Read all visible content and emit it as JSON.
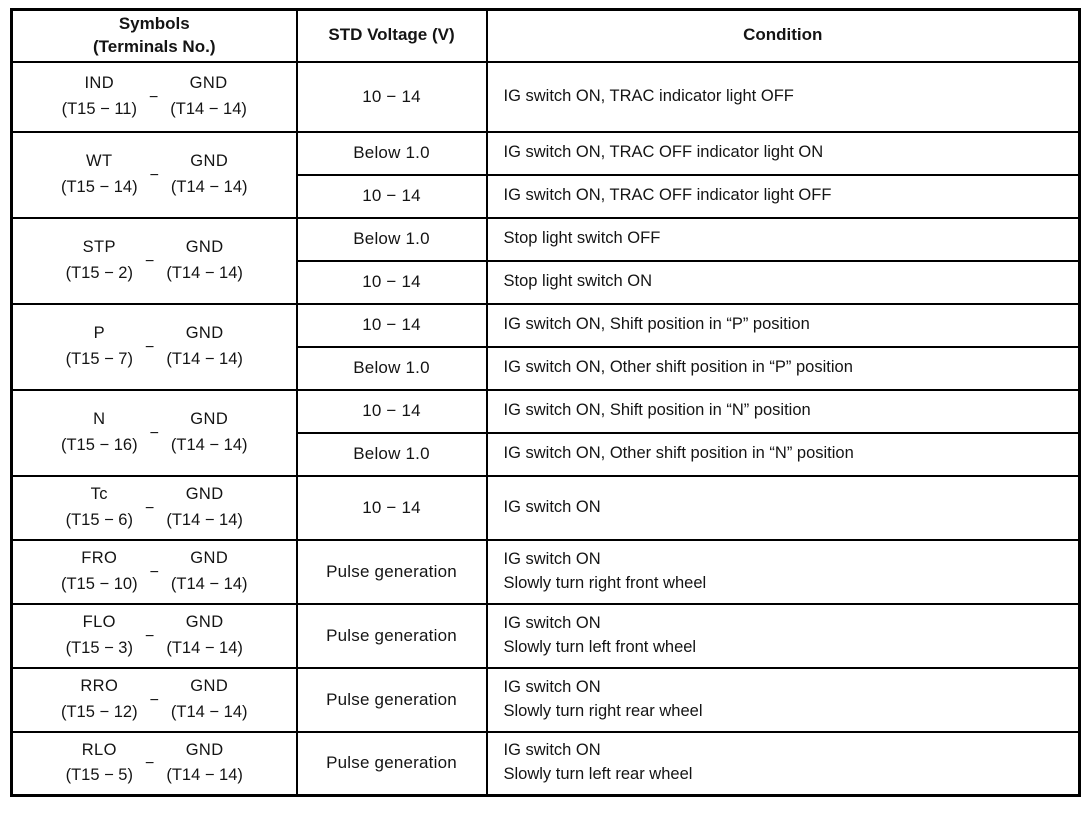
{
  "table": {
    "dash": "−",
    "header": {
      "symbols_line1": "Symbols",
      "symbols_line2": "(Terminals No.)",
      "voltage": "STD Voltage (V)",
      "condition": "Condition"
    },
    "groups": [
      {
        "symbol": "IND",
        "symbol_terminal": "(T15 − 11)",
        "gnd": "GND",
        "gnd_terminal": "(T14 − 14)",
        "rows": [
          {
            "voltage": "10 − 14",
            "condition1": "IG switch ON, TRAC indicator light OFF",
            "condition2": ""
          }
        ]
      },
      {
        "symbol": "WT",
        "symbol_terminal": "(T15 − 14)",
        "gnd": "GND",
        "gnd_terminal": "(T14 − 14)",
        "rows": [
          {
            "voltage": "Below 1.0",
            "condition1": "IG switch ON, TRAC OFF indicator light ON",
            "condition2": ""
          },
          {
            "voltage": "10 − 14",
            "condition1": "IG switch ON, TRAC OFF indicator light OFF",
            "condition2": ""
          }
        ]
      },
      {
        "symbol": "STP",
        "symbol_terminal": "(T15 − 2)",
        "gnd": "GND",
        "gnd_terminal": "(T14 − 14)",
        "rows": [
          {
            "voltage": "Below 1.0",
            "condition1": "Stop light switch OFF",
            "condition2": ""
          },
          {
            "voltage": "10 − 14",
            "condition1": "Stop light switch ON",
            "condition2": ""
          }
        ]
      },
      {
        "symbol": "P",
        "symbol_terminal": "(T15 − 7)",
        "gnd": "GND",
        "gnd_terminal": "(T14 − 14)",
        "rows": [
          {
            "voltage": "10 − 14",
            "condition1": "IG switch ON, Shift position in “P” position",
            "condition2": ""
          },
          {
            "voltage": "Below 1.0",
            "condition1": "IG switch ON, Other shift position in “P” position",
            "condition2": ""
          }
        ]
      },
      {
        "symbol": "N",
        "symbol_terminal": "(T15 − 16)",
        "gnd": "GND",
        "gnd_terminal": "(T14 − 14)",
        "rows": [
          {
            "voltage": "10 − 14",
            "condition1": "IG switch ON, Shift position in “N” position",
            "condition2": ""
          },
          {
            "voltage": "Below 1.0",
            "condition1": "IG switch ON, Other shift position in “N” position",
            "condition2": ""
          }
        ]
      },
      {
        "symbol": "Tc",
        "symbol_terminal": "(T15 − 6)",
        "gnd": "GND",
        "gnd_terminal": "(T14 − 14)",
        "rows": [
          {
            "voltage": "10 − 14",
            "condition1": "IG switch ON",
            "condition2": ""
          }
        ]
      },
      {
        "symbol": "FRO",
        "symbol_terminal": "(T15 − 10)",
        "gnd": "GND",
        "gnd_terminal": "(T14 − 14)",
        "rows": [
          {
            "voltage": "Pulse generation",
            "condition1": "IG switch ON",
            "condition2": "Slowly turn right front wheel"
          }
        ]
      },
      {
        "symbol": "FLO",
        "symbol_terminal": "(T15 − 3)",
        "gnd": "GND",
        "gnd_terminal": "(T14 − 14)",
        "rows": [
          {
            "voltage": "Pulse generation",
            "condition1": "IG switch ON",
            "condition2": "Slowly turn left front wheel"
          }
        ]
      },
      {
        "symbol": "RRO",
        "symbol_terminal": "(T15 − 12)",
        "gnd": "GND",
        "gnd_terminal": "(T14 − 14)",
        "rows": [
          {
            "voltage": "Pulse generation",
            "condition1": "IG switch ON",
            "condition2": "Slowly turn right rear wheel"
          }
        ]
      },
      {
        "symbol": "RLO",
        "symbol_terminal": "(T15 − 5)",
        "gnd": "GND",
        "gnd_terminal": "(T14 − 14)",
        "rows": [
          {
            "voltage": "Pulse generation",
            "condition1": "IG switch ON",
            "condition2": "Slowly turn left rear wheel"
          }
        ]
      }
    ]
  }
}
